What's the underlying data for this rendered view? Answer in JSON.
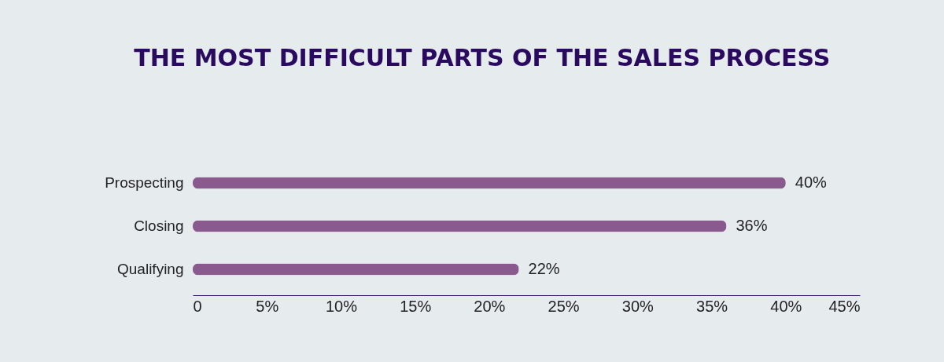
{
  "chart_data": {
    "type": "bar",
    "orientation": "horizontal",
    "title": "THE MOST DIFFICULT PARTS OF THE SALES PROCESS",
    "categories": [
      "Prospecting",
      "Closing",
      "Qualifying"
    ],
    "values": [
      40,
      36,
      22
    ],
    "value_labels": [
      "40%",
      "36%",
      "22%"
    ],
    "color": "#8a5a8e",
    "xlim": [
      0,
      45
    ],
    "xticks": [
      0,
      {
        "value": 5,
        "label": "5%"
      },
      {
        "value": 10,
        "label": "10%"
      },
      {
        "value": 15,
        "label": "15%"
      },
      {
        "value": 20,
        "label": "20%"
      },
      {
        "value": 25,
        "label": "25%"
      },
      {
        "value": 30,
        "label": "30%"
      },
      {
        "value": 35,
        "label": "35%"
      },
      {
        "value": 40,
        "label": "40%"
      },
      {
        "value": 45,
        "label": "45%"
      }
    ],
    "grid": false
  }
}
